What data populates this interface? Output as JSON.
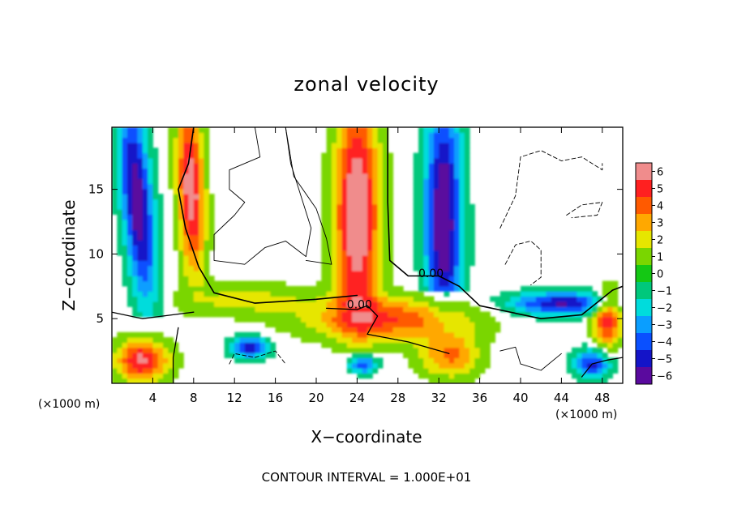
{
  "chart_data": {
    "type": "heatmap",
    "title": "zonal velocity",
    "xlabel": "X−coordinate",
    "ylabel": "Z−coordinate",
    "x_units_left": "(×1000 m)",
    "x_units_right": "(×1000 m)",
    "xlim": [
      0,
      50
    ],
    "ylim": [
      0,
      19.8
    ],
    "x_ticks": [
      4,
      8,
      12,
      16,
      20,
      24,
      28,
      32,
      36,
      40,
      44,
      48
    ],
    "y_ticks": [
      5,
      10,
      15
    ],
    "contour_interval_text": "CONTOUR INTERVAL = 1.000E+01",
    "contour_labels": [
      {
        "text": "0.00",
        "x": 30.0,
        "y": 8.2
      },
      {
        "text": "0.00",
        "x": 23.0,
        "y": 5.8
      }
    ],
    "colorbar": {
      "levels": [
        6,
        5,
        4,
        3,
        2,
        1,
        0,
        -1,
        -2,
        -3,
        -4,
        -5,
        -6
      ],
      "tick_labels": [
        "6",
        "5",
        "4",
        "3",
        "2",
        "1",
        "0",
        "−1",
        "−2",
        "−3",
        "−4",
        "−5",
        "−6"
      ],
      "colors": [
        "#f08c8c",
        "#ff2020",
        "#ff5a00",
        "#ffa800",
        "#e6e600",
        "#7ad600",
        "#14c814",
        "#00c87c",
        "#00dcdc",
        "#0a9eff",
        "#0a50ff",
        "#1414c8",
        "#5a0a9e"
      ]
    },
    "background": "#ffffff",
    "plot_background": "#ffffff"
  }
}
